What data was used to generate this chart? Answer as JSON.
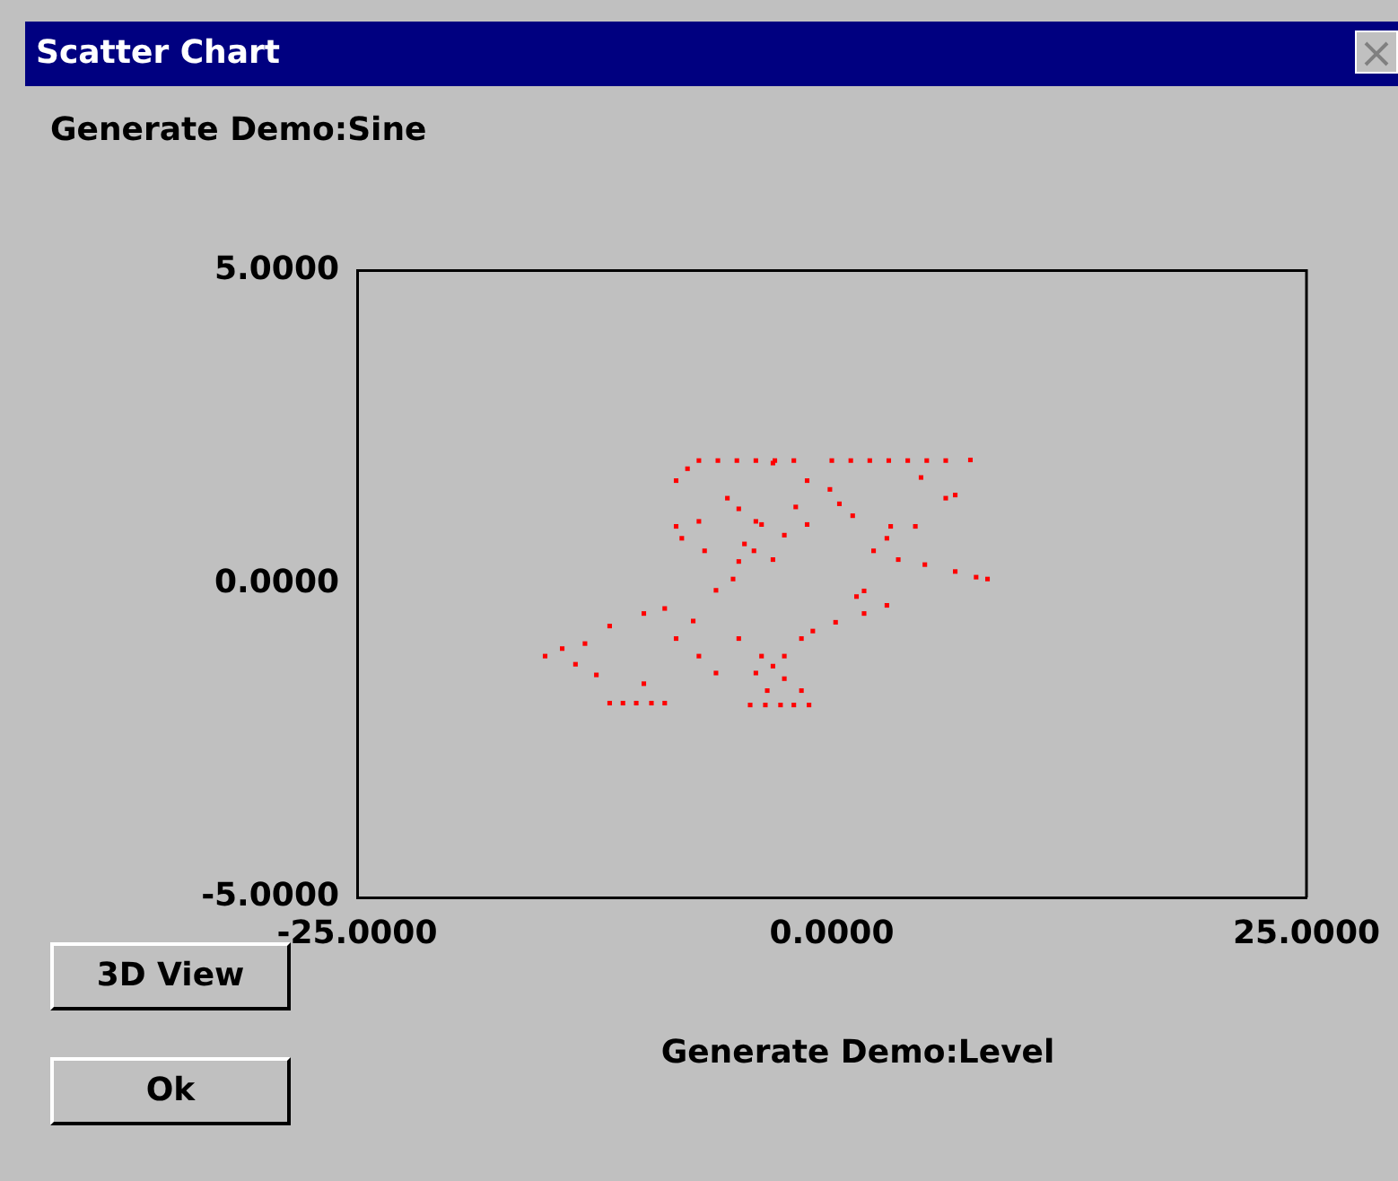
{
  "chart_data": {
    "type": "scatter",
    "title": "Scatter Chart",
    "ylabel": "Generate Demo:Sine",
    "xlabel": "Generate Demo:Level",
    "annotations": [
      "3D View",
      "Ok"
    ],
    "xlim": [
      -25,
      25
    ],
    "xticks": [
      {
        "value": -25,
        "label": "-25.0000"
      },
      {
        "value": 0,
        "label": "0.0000"
      },
      {
        "value": 25,
        "label": "25.0000"
      }
    ],
    "ylim": [
      -5,
      5
    ],
    "yticks": [
      {
        "value": -5,
        "label": "-5.0000"
      },
      {
        "value": 0,
        "label": "0.0000"
      },
      {
        "value": 5,
        "label": "5.0000"
      }
    ],
    "grid": false,
    "legend": false,
    "marker": "square",
    "series": [
      {
        "color": "#ff0000",
        "x": [
          -7.0,
          -6.0,
          -5.0,
          -4.0,
          -3.0,
          -2.0,
          0,
          1,
          2,
          3,
          4,
          5,
          6,
          7.3,
          4.7,
          6.0,
          6.5,
          2.2,
          3.5,
          4.9,
          6.5,
          7.6,
          8.2,
          -11.7,
          -11,
          -10.3,
          -9.5,
          -8.8,
          -4.3,
          -3.5,
          -2.7,
          -2,
          -1.2,
          -4.9,
          -6.1,
          -7.3,
          -8.8,
          -9.9,
          -11.7,
          -13.0,
          -14.2,
          -15.1,
          -13.5,
          -12.4,
          -9.9,
          -8.2,
          -7.0,
          -6.1,
          -4.9,
          -8.2,
          -7.6,
          -8.2,
          -7.9,
          -6.7,
          -7.0,
          -5.5,
          -4.9,
          -4.0,
          -4.6,
          -5.2,
          -3.1,
          -1.3,
          -0.1,
          0.4,
          -1.9,
          -3.7,
          -2.5,
          -4.1,
          -3.1,
          -1.3,
          1.1,
          3.1,
          4.4,
          2.9,
          1.7,
          1.3,
          2.9,
          1.7,
          0.2,
          -1.0,
          -1.6,
          -2.5,
          -3.1,
          -3.7,
          -4.0,
          -2.5,
          -1.6,
          -3.4
        ],
        "values": [
          1.97,
          1.97,
          1.97,
          1.97,
          1.97,
          1.97,
          1.97,
          1.97,
          1.97,
          1.97,
          1.97,
          1.97,
          1.97,
          1.98,
          1.7,
          1.37,
          1.42,
          0.53,
          0.39,
          0.31,
          0.2,
          0.11,
          0.08,
          -1.9,
          -1.9,
          -1.9,
          -1.9,
          -1.9,
          -1.93,
          -1.93,
          -1.93,
          -1.93,
          -1.93,
          0.36,
          -0.1,
          -0.59,
          -0.39,
          -0.47,
          -0.67,
          -0.95,
          -1.03,
          -1.15,
          -1.28,
          -1.45,
          -1.59,
          -0.87,
          -1.15,
          -1.42,
          -0.87,
          1.65,
          1.84,
          0.92,
          0.73,
          0.53,
          1.0,
          1.37,
          1.2,
          1.0,
          0.64,
          0.08,
          1.93,
          1.65,
          1.51,
          1.28,
          1.23,
          0.95,
          0.78,
          0.53,
          0.39,
          0.95,
          1.09,
          0.92,
          0.92,
          0.73,
          -0.11,
          -0.2,
          -0.34,
          -0.47,
          -0.61,
          -0.75,
          -0.87,
          -1.15,
          -1.31,
          -1.15,
          -1.42,
          -1.51,
          -1.7,
          -1.7
        ]
      }
    ]
  }
}
